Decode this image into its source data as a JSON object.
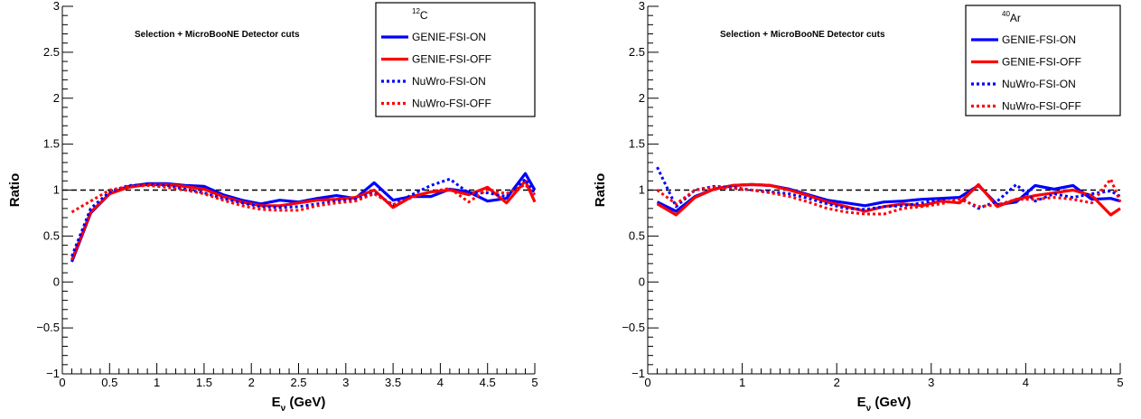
{
  "figure": {
    "background": "#ffffff"
  },
  "chart_data": [
    {
      "type": "line",
      "annotation": "Selection + MicroBooNE Detector cuts",
      "legend": {
        "title_sup": "12",
        "title": "C",
        "placement": "top-right"
      },
      "xlabel": {
        "main": "E",
        "sub": "ν",
        "rest": " (GeV)"
      },
      "ylabel": "Ratio",
      "xlim": [
        0,
        5
      ],
      "ylim": [
        -1,
        3
      ],
      "xticks": [
        0,
        0.5,
        1,
        1.5,
        2,
        2.5,
        3,
        3.5,
        4,
        4.5,
        5
      ],
      "xtick_labels": [
        "0",
        "0.5",
        "1",
        "1.5",
        "2",
        "2.5",
        "3",
        "3.5",
        "4",
        "4.5",
        "5"
      ],
      "yticks": [
        -1,
        -0.5,
        0,
        0.5,
        1,
        1.5,
        2,
        2.5,
        3
      ],
      "ytick_labels": [
        "−1",
        "−0.5",
        "0",
        "0.5",
        "1",
        "1.5",
        "2",
        "2.5",
        "3"
      ],
      "reference_line": 1,
      "series": [
        {
          "name": "GENIE-FSI-ON",
          "color": "#0000ff",
          "style": "solid",
          "x": [
            0.1,
            0.3,
            0.5,
            0.7,
            0.9,
            1.1,
            1.3,
            1.5,
            1.7,
            1.9,
            2.1,
            2.3,
            2.5,
            2.7,
            2.9,
            3.1,
            3.3,
            3.5,
            3.7,
            3.9,
            4.1,
            4.3,
            4.5,
            4.7,
            4.9,
            5.0
          ],
          "y": [
            0.22,
            0.75,
            0.96,
            1.04,
            1.07,
            1.07,
            1.05,
            1.04,
            0.95,
            0.89,
            0.85,
            0.89,
            0.87,
            0.91,
            0.94,
            0.91,
            1.08,
            0.89,
            0.93,
            0.93,
            1.01,
            0.98,
            0.88,
            0.91,
            1.18,
            1.0
          ]
        },
        {
          "name": "GENIE-FSI-OFF",
          "color": "#ff0000",
          "style": "solid",
          "x": [
            0.1,
            0.3,
            0.5,
            0.7,
            0.9,
            1.1,
            1.3,
            1.5,
            1.7,
            1.9,
            2.1,
            2.3,
            2.5,
            2.7,
            2.9,
            3.1,
            3.3,
            3.5,
            3.7,
            3.9,
            4.1,
            4.3,
            4.5,
            4.7,
            4.9,
            5.0
          ],
          "y": [
            0.24,
            0.76,
            0.96,
            1.03,
            1.06,
            1.06,
            1.04,
            1.01,
            0.93,
            0.87,
            0.83,
            0.83,
            0.86,
            0.89,
            0.9,
            0.92,
            1.0,
            0.81,
            0.93,
            0.98,
            1.0,
            0.95,
            1.03,
            0.86,
            1.1,
            0.87
          ]
        },
        {
          "name": "NuWro-FSI-ON",
          "color": "#0000ff",
          "style": "dotted",
          "x": [
            0.1,
            0.3,
            0.5,
            0.7,
            0.9,
            1.1,
            1.3,
            1.5,
            1.7,
            1.9,
            2.1,
            2.3,
            2.5,
            2.7,
            2.9,
            3.1,
            3.3,
            3.5,
            3.7,
            3.9,
            4.1,
            4.3,
            4.5,
            4.7,
            4.9,
            5.0
          ],
          "y": [
            0.28,
            0.8,
            0.98,
            1.05,
            1.06,
            1.05,
            1.01,
            0.97,
            0.91,
            0.86,
            0.82,
            0.81,
            0.82,
            0.85,
            0.88,
            0.9,
            0.97,
            0.84,
            0.95,
            1.05,
            1.12,
            0.97,
            0.97,
            0.93,
            1.12,
            0.96
          ]
        },
        {
          "name": "NuWro-FSI-OFF",
          "color": "#ff0000",
          "style": "dotted",
          "x": [
            0.1,
            0.3,
            0.5,
            0.7,
            0.9,
            1.1,
            1.3,
            1.5,
            1.7,
            1.9,
            2.1,
            2.3,
            2.5,
            2.7,
            2.9,
            3.1,
            3.3,
            3.5,
            3.7,
            3.9,
            4.1,
            4.3,
            4.5,
            4.7,
            4.9,
            5.0
          ],
          "y": [
            0.76,
            0.88,
            1.0,
            1.04,
            1.05,
            1.03,
            1.0,
            0.96,
            0.89,
            0.83,
            0.79,
            0.78,
            0.78,
            0.83,
            0.86,
            0.88,
            0.96,
            0.84,
            0.92,
            0.98,
            1.02,
            0.87,
            1.01,
            0.96,
            1.06,
            0.95
          ]
        }
      ]
    },
    {
      "type": "line",
      "annotation": "Selection + MicroBooNE Detector cuts",
      "legend": {
        "title_sup": "40",
        "title": "Ar",
        "placement": "top-right"
      },
      "xlabel": {
        "main": "E",
        "sub": "ν",
        "rest": " (GeV)"
      },
      "ylabel": "Ratio",
      "xlim": [
        0,
        5
      ],
      "ylim": [
        -1,
        3
      ],
      "xticks": [
        0,
        1,
        2,
        3,
        4,
        5
      ],
      "xtick_labels": [
        "0",
        "1",
        "2",
        "3",
        "4",
        "5"
      ],
      "yticks": [
        -1,
        -0.5,
        0,
        0.5,
        1,
        1.5,
        2,
        2.5,
        3
      ],
      "ytick_labels": [
        "−1",
        "−0.5",
        "0",
        "0.5",
        "1",
        "1.5",
        "2",
        "2.5",
        "3"
      ],
      "reference_line": 1,
      "series": [
        {
          "name": "GENIE-FSI-ON",
          "color": "#0000ff",
          "style": "solid",
          "x": [
            0.1,
            0.3,
            0.5,
            0.7,
            0.9,
            1.1,
            1.3,
            1.5,
            1.7,
            1.9,
            2.1,
            2.3,
            2.5,
            2.7,
            2.9,
            3.1,
            3.3,
            3.5,
            3.7,
            3.9,
            4.1,
            4.3,
            4.5,
            4.7,
            4.9,
            5.0
          ],
          "y": [
            0.87,
            0.77,
            0.93,
            1.01,
            1.05,
            1.06,
            1.05,
            1.01,
            0.95,
            0.89,
            0.86,
            0.83,
            0.87,
            0.88,
            0.9,
            0.91,
            0.92,
            1.05,
            0.84,
            0.87,
            1.05,
            1.01,
            1.05,
            0.9,
            0.91,
            0.88
          ]
        },
        {
          "name": "GENIE-FSI-OFF",
          "color": "#ff0000",
          "style": "solid",
          "x": [
            0.1,
            0.3,
            0.5,
            0.7,
            0.9,
            1.1,
            1.3,
            1.5,
            1.7,
            1.9,
            2.1,
            2.3,
            2.5,
            2.7,
            2.9,
            3.1,
            3.3,
            3.5,
            3.7,
            3.9,
            4.1,
            4.3,
            4.5,
            4.7,
            4.9,
            5.0
          ],
          "y": [
            0.85,
            0.73,
            0.92,
            1.01,
            1.05,
            1.06,
            1.05,
            1.0,
            0.94,
            0.87,
            0.82,
            0.77,
            0.82,
            0.85,
            0.83,
            0.88,
            0.86,
            1.06,
            0.82,
            0.9,
            0.94,
            0.97,
            1.0,
            0.94,
            0.73,
            0.8
          ]
        },
        {
          "name": "NuWro-FSI-ON",
          "color": "#0000ff",
          "style": "dotted",
          "x": [
            0.1,
            0.3,
            0.5,
            0.7,
            0.9,
            1.1,
            1.3,
            1.5,
            1.7,
            1.9,
            2.1,
            2.3,
            2.5,
            2.7,
            2.9,
            3.1,
            3.3,
            3.5,
            3.7,
            3.9,
            4.1,
            4.3,
            4.5,
            4.7,
            4.9,
            5.0
          ],
          "y": [
            1.25,
            0.82,
            1.0,
            1.04,
            1.03,
            1.0,
            0.98,
            0.96,
            0.91,
            0.85,
            0.8,
            0.79,
            0.82,
            0.83,
            0.86,
            0.9,
            0.92,
            0.8,
            0.88,
            1.06,
            0.88,
            0.96,
            0.92,
            0.96,
            0.99,
            0.93
          ]
        },
        {
          "name": "NuWro-FSI-OFF",
          "color": "#ff0000",
          "style": "dotted",
          "x": [
            0.1,
            0.3,
            0.5,
            0.7,
            0.9,
            1.1,
            1.3,
            1.5,
            1.7,
            1.9,
            2.1,
            2.3,
            2.5,
            2.7,
            2.9,
            3.1,
            3.3,
            3.5,
            3.7,
            3.9,
            4.1,
            4.3,
            4.5,
            4.7,
            4.9,
            5.0
          ],
          "y": [
            1.0,
            0.85,
            1.0,
            1.03,
            1.02,
            1.0,
            0.97,
            0.93,
            0.87,
            0.8,
            0.76,
            0.74,
            0.74,
            0.8,
            0.82,
            0.85,
            0.9,
            0.82,
            0.84,
            0.9,
            0.9,
            0.92,
            0.9,
            0.86,
            1.12,
            0.87
          ]
        }
      ]
    }
  ]
}
